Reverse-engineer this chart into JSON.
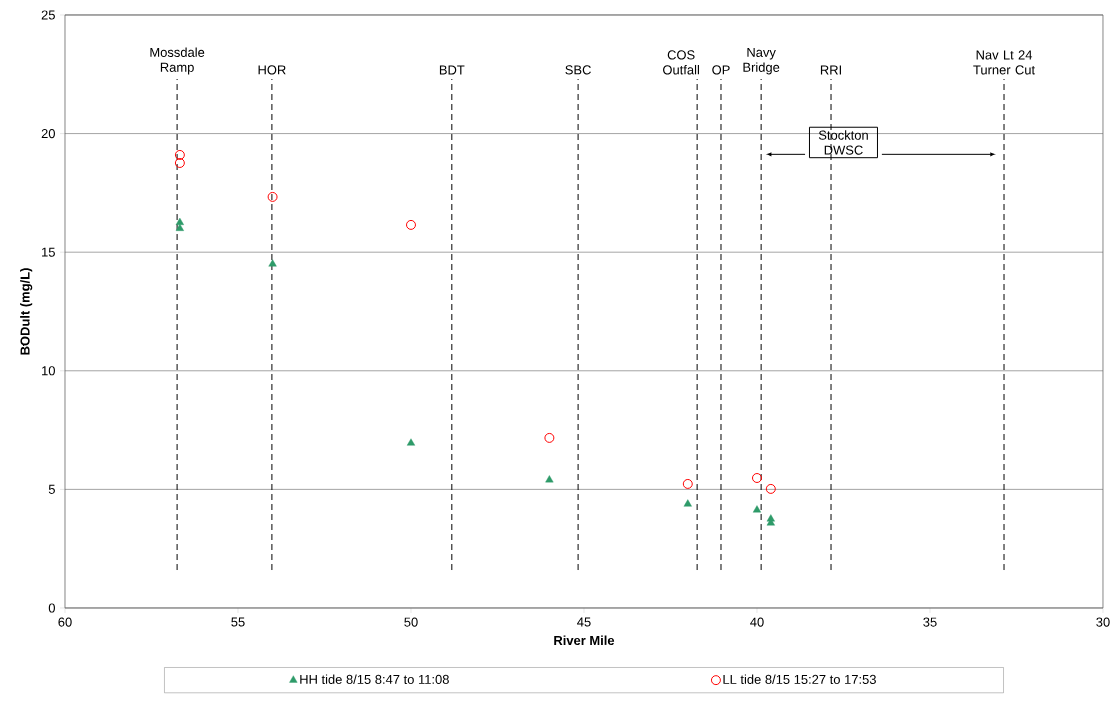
{
  "chart_data": {
    "type": "scatter",
    "xlabel": "River Mile",
    "ylabel": "BODult (mg/L)",
    "xlim": [
      60,
      30
    ],
    "ylim": [
      0,
      25
    ],
    "xticks": [
      60,
      55,
      50,
      45,
      40,
      35,
      30
    ],
    "yticks": [
      0,
      5,
      10,
      15,
      20,
      25
    ],
    "grid": "y",
    "legend": "bottom",
    "series": [
      {
        "name": "HH tide 8/15 8:47 to 11:08",
        "color": "#2e9b69",
        "marker": "triangle",
        "x": [
          56.68,
          56.68,
          54.0,
          50.0,
          46.0,
          42.0,
          40.0,
          39.6,
          39.6
        ],
        "values": [
          16.25,
          16.0,
          14.5,
          6.95,
          5.4,
          4.38,
          4.13,
          3.75,
          3.58
        ]
      },
      {
        "name": "LL tide 8/15 15:27 to 17:53",
        "color": "#ff0000",
        "marker": "circle",
        "x": [
          56.68,
          56.68,
          54.0,
          50.0,
          46.0,
          42.0,
          40.0,
          39.6
        ],
        "values": [
          19.1,
          18.76,
          17.33,
          16.15,
          7.17,
          5.23,
          5.48,
          5.02
        ]
      }
    ],
    "ref_lines": [
      {
        "axis": "x",
        "value": 56.76,
        "label": "Mossdale Ramp",
        "line_style": "dashed"
      },
      {
        "axis": "x",
        "value": 54.02,
        "label": "HOR",
        "line_style": "dashed"
      },
      {
        "axis": "x",
        "value": 48.82,
        "label": "BDT",
        "line_style": "dashed"
      },
      {
        "axis": "x",
        "value": 45.17,
        "label": "SBC",
        "line_style": "dashed"
      },
      {
        "axis": "x",
        "value": 41.73,
        "label": "COS Outfall",
        "line_style": "dashed"
      },
      {
        "axis": "x",
        "value": 41.04,
        "label": "OP",
        "line_style": "dashed"
      },
      {
        "axis": "x",
        "value": 39.88,
        "label": "Navy Bridge",
        "line_style": "dashed"
      },
      {
        "axis": "x",
        "value": 37.86,
        "label": "RRI",
        "line_style": "dashed"
      },
      {
        "axis": "x",
        "value": 32.86,
        "label": "Nav Lt 24 Turner Cut",
        "line_style": "dashed"
      }
    ],
    "annotations": [
      "Stockton DWSC"
    ]
  }
}
